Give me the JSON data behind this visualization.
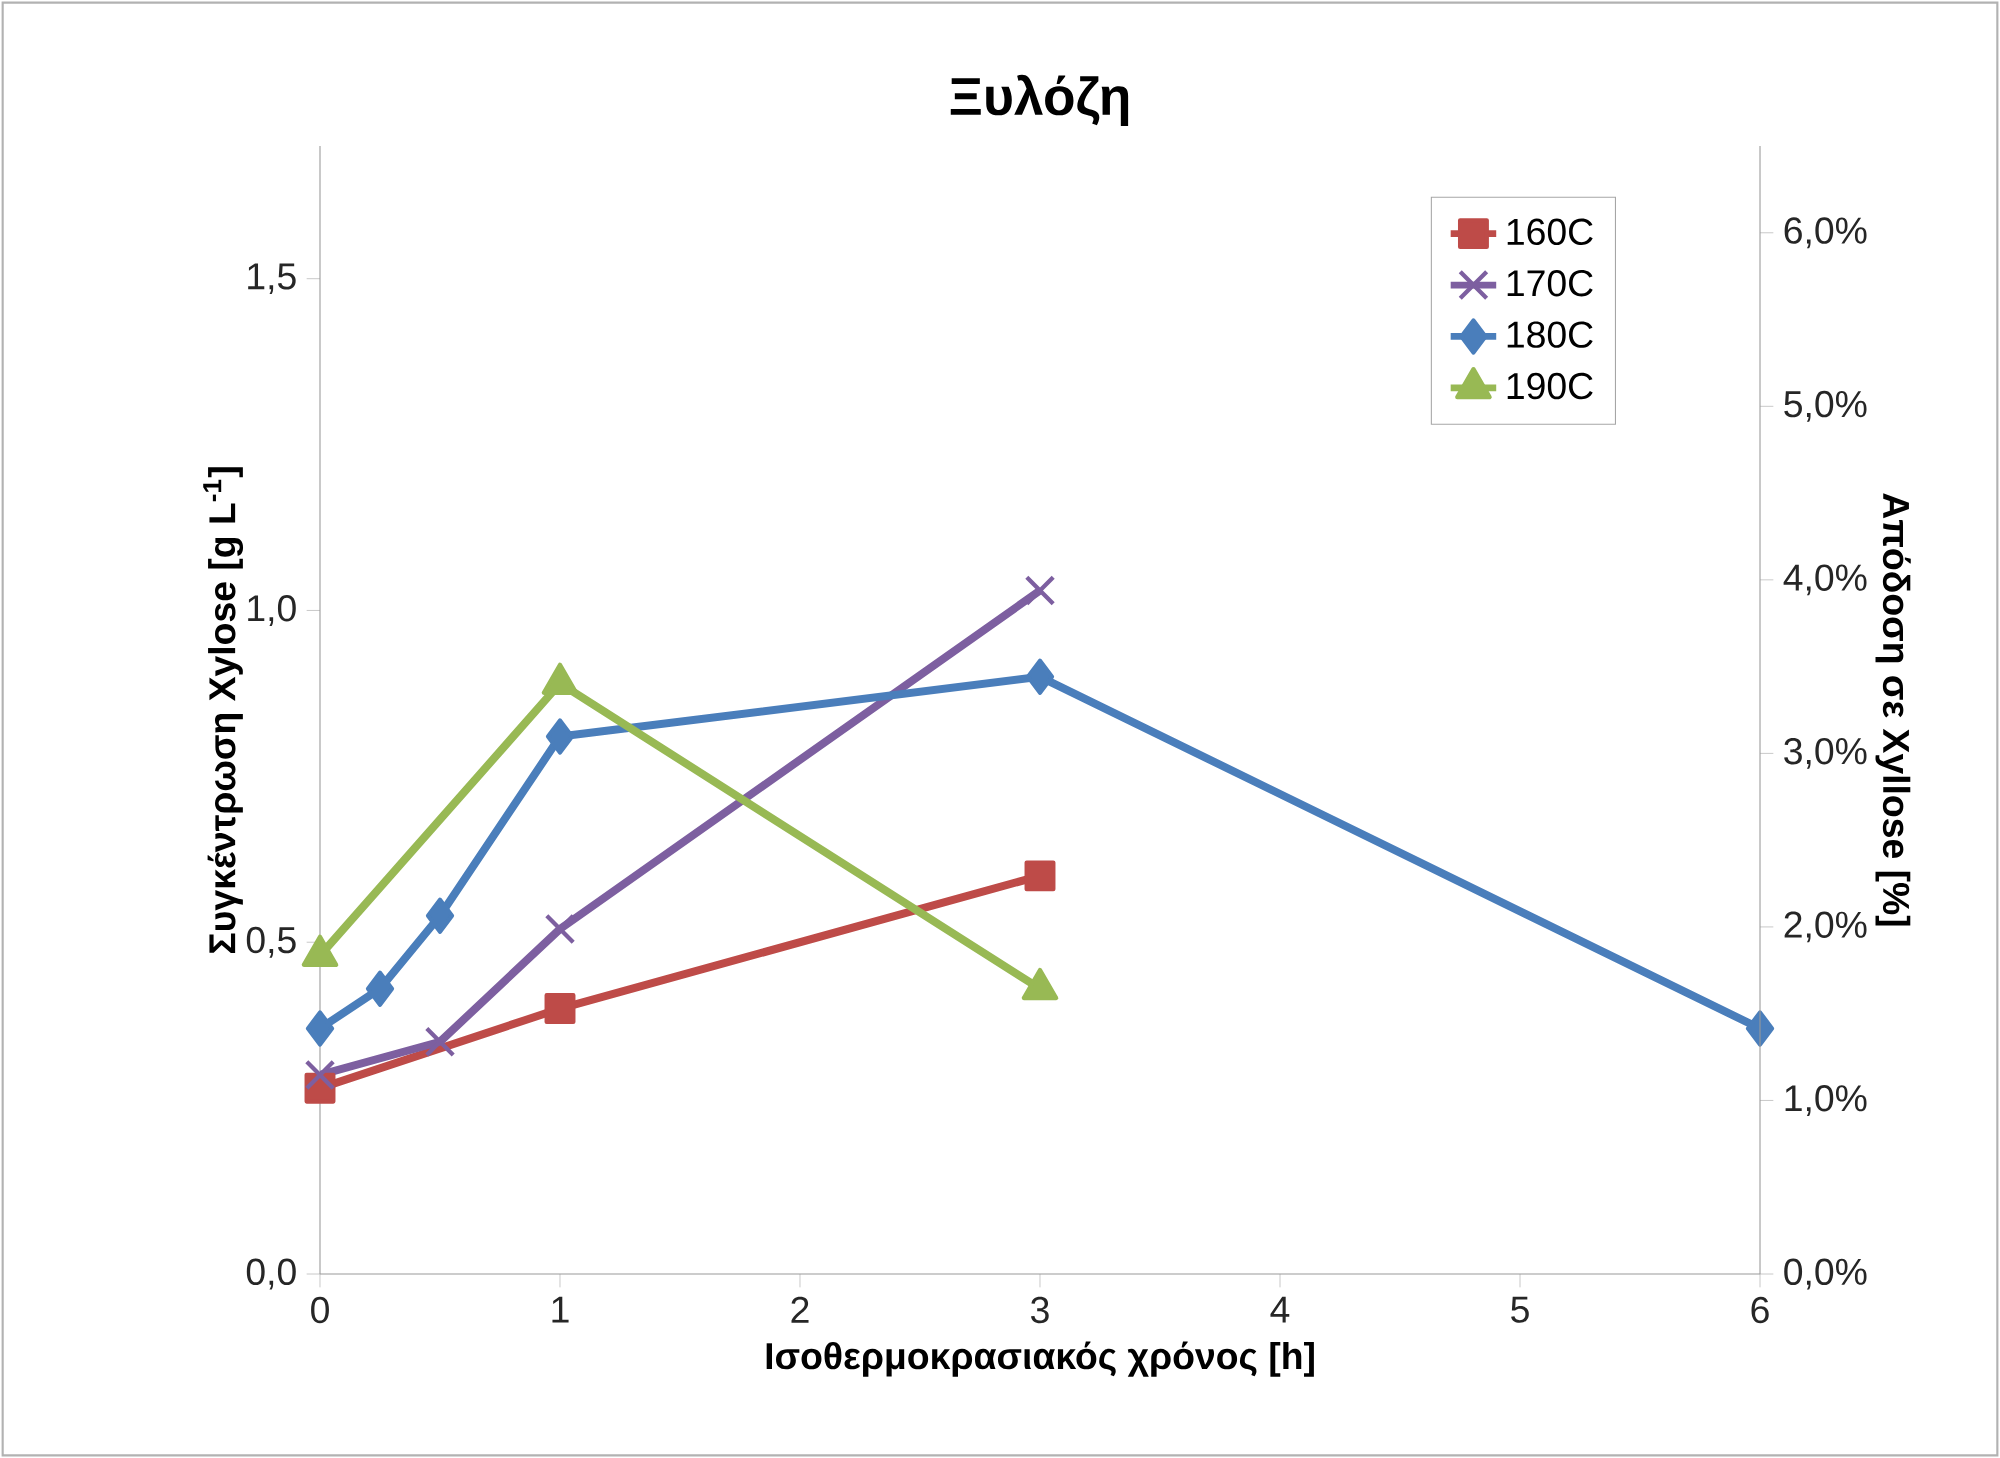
{
  "chart_data": {
    "type": "line",
    "title": "Ξυλόζη",
    "xlabel": "Ισοθερμοκρασιακός χρόνος [h]",
    "ylabel": "Συγκέντρωση Xylose [g L$^{-1}$]",
    "y2label": "Απόδοση σε Xyllose [%]",
    "xlim": [
      0,
      6
    ],
    "xticks": [
      0,
      1,
      2,
      3,
      4,
      5,
      6
    ],
    "ylim": [
      0,
      1.7
    ],
    "yticks": [
      {
        "value": 0,
        "label": "0,0"
      },
      {
        "value": 0.5,
        "label": "0,5"
      },
      {
        "value": 1.0,
        "label": "1,0"
      },
      {
        "value": 1.5,
        "label": "1,5"
      }
    ],
    "y2lim": [
      0,
      6.5
    ],
    "y2ticks": [
      {
        "value": 0,
        "label": "0,0%"
      },
      {
        "value": 1,
        "label": "1,0%"
      },
      {
        "value": 2,
        "label": "2,0%"
      },
      {
        "value": 3,
        "label": "3,0%"
      },
      {
        "value": 4,
        "label": "4,0%"
      },
      {
        "value": 5,
        "label": "5,0%"
      },
      {
        "value": 6,
        "label": "6,0%"
      }
    ],
    "legend": "top right",
    "grid": false,
    "line_style": "solid",
    "series": [
      {
        "name": "160C",
        "color": "#be4b48",
        "marker": "square",
        "x": [
          0,
          1,
          3
        ],
        "values": [
          0.28,
          0.4,
          0.6
        ]
      },
      {
        "name": "170C",
        "color": "#7d5fa0",
        "marker": "cross",
        "x": [
          0,
          0.5,
          1,
          3
        ],
        "values": [
          0.3,
          0.35,
          0.52,
          1.03
        ]
      },
      {
        "name": "180C",
        "color": "#4a7ebb",
        "marker": "diamond",
        "x": [
          0,
          0.25,
          0.5,
          1,
          3,
          6
        ],
        "values": [
          0.37,
          0.43,
          0.54,
          0.81,
          0.9,
          0.37
        ]
      },
      {
        "name": "190C",
        "color": "#98b954",
        "marker": "triangle",
        "x": [
          0,
          1,
          3
        ],
        "values": [
          0.48,
          0.89,
          0.43
        ]
      }
    ]
  }
}
